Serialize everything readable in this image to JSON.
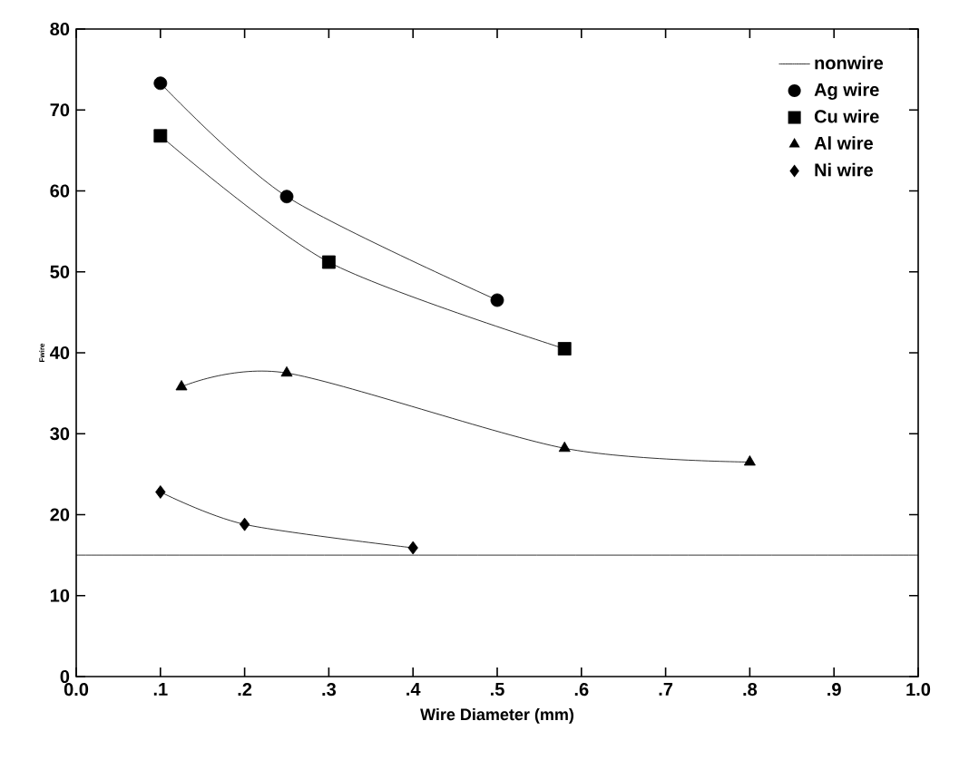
{
  "chart_data": {
    "type": "line",
    "xlabel": "Wire Diameter (mm)",
    "ylabel": "Fwire",
    "xlim": [
      0.0,
      1.0
    ],
    "ylim": [
      0,
      80
    ],
    "xticks": [
      {
        "value": 0.0,
        "label": "0.0"
      },
      {
        "value": 0.1,
        "label": ".1"
      },
      {
        "value": 0.2,
        "label": ".2"
      },
      {
        "value": 0.3,
        "label": ".3"
      },
      {
        "value": 0.4,
        "label": ".4"
      },
      {
        "value": 0.5,
        "label": ".5"
      },
      {
        "value": 0.6,
        "label": ".6"
      },
      {
        "value": 0.7,
        "label": ".7"
      },
      {
        "value": 0.8,
        "label": ".8"
      },
      {
        "value": 0.9,
        "label": ".9"
      },
      {
        "value": 1.0,
        "label": "1.0"
      }
    ],
    "yticks": [
      0,
      10,
      20,
      30,
      40,
      50,
      60,
      70,
      80
    ],
    "grid": false,
    "legend": "top right",
    "series": [
      {
        "name": "nonwire",
        "color": "#000000",
        "marker": "none",
        "x": [
          0.0,
          1.0
        ],
        "values": [
          15,
          15
        ]
      },
      {
        "name": "Ag wire",
        "color": "#000000",
        "marker": "circle",
        "x": [
          0.1,
          0.25,
          0.5
        ],
        "values": [
          73.3,
          59.3,
          46.5
        ]
      },
      {
        "name": "Cu wire",
        "color": "#000000",
        "marker": "square",
        "x": [
          0.1,
          0.3,
          0.58
        ],
        "values": [
          66.8,
          51.2,
          40.5
        ]
      },
      {
        "name": "Al wire",
        "color": "#000000",
        "marker": "triangle",
        "x": [
          0.125,
          0.25,
          0.58,
          0.8
        ],
        "values": [
          35.8,
          37.5,
          28.2,
          26.5
        ]
      },
      {
        "name": "Ni wire",
        "color": "#000000",
        "marker": "diamond",
        "x": [
          0.1,
          0.2,
          0.4
        ],
        "values": [
          22.8,
          18.8,
          15.9
        ]
      }
    ]
  }
}
